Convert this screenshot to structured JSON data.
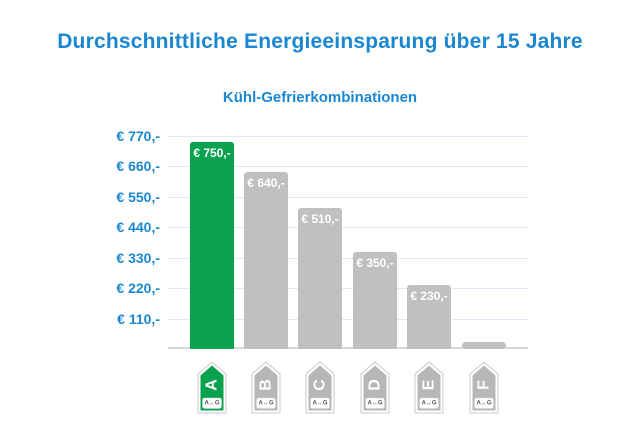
{
  "title": "Durchschnittliche Energieeinsparung über 15 Jahre",
  "subtitle": "Kühl-Gefrierkombinationen",
  "colors": {
    "title_blue": "#1a87d0",
    "axis_blue": "#1a87d0",
    "green": "#0ba24f",
    "gray_bar": "#c0c0c0",
    "badge_gray": "#b7b7b7",
    "gridline": "#ddeaf6",
    "baseline": "#d2d9de",
    "bar_label": "#ffffff",
    "badge_letter": "#ffffff",
    "badge_scale_text": "#555555",
    "badge_outline": "#c9c9c9"
  },
  "chart_data": {
    "type": "bar",
    "title": "Durchschnittliche Energieeinsparung über 15 Jahre",
    "subtitle": "Kühl-Gefrierkombinationen",
    "unit": "EUR",
    "categories": [
      "A",
      "B",
      "C",
      "D",
      "E",
      "F"
    ],
    "values": [
      750,
      640,
      510,
      350,
      230,
      25
    ],
    "bar_labels": [
      "€ 750,-",
      "€ 640,-",
      "€ 510,-",
      "€ 350,-",
      "€ 230,-",
      ""
    ],
    "bar_colors": [
      "#0ba24f",
      "#c0c0c0",
      "#c0c0c0",
      "#c0c0c0",
      "#c0c0c0",
      "#c0c0c0"
    ],
    "y_ticks": [
      770,
      660,
      550,
      440,
      330,
      220,
      110
    ],
    "y_tick_labels": [
      "€ 770,-",
      "€ 660,-",
      "€ 550,-",
      "€ 440,-",
      "€ 330,-",
      "€ 220,-",
      "€ 110,-"
    ],
    "ylim": [
      0,
      770
    ],
    "grid": true,
    "legend": "none",
    "x_axis_badges": [
      {
        "letter": "A",
        "scale": "A↔G",
        "color": "#0ba24f"
      },
      {
        "letter": "B",
        "scale": "A↔G",
        "color": "#b7b7b7"
      },
      {
        "letter": "C",
        "scale": "A↔G",
        "color": "#b7b7b7"
      },
      {
        "letter": "D",
        "scale": "A↔G",
        "color": "#b7b7b7"
      },
      {
        "letter": "E",
        "scale": "A↔G",
        "color": "#b7b7b7"
      },
      {
        "letter": "F",
        "scale": "A↔G",
        "color": "#b7b7b7"
      }
    ]
  }
}
